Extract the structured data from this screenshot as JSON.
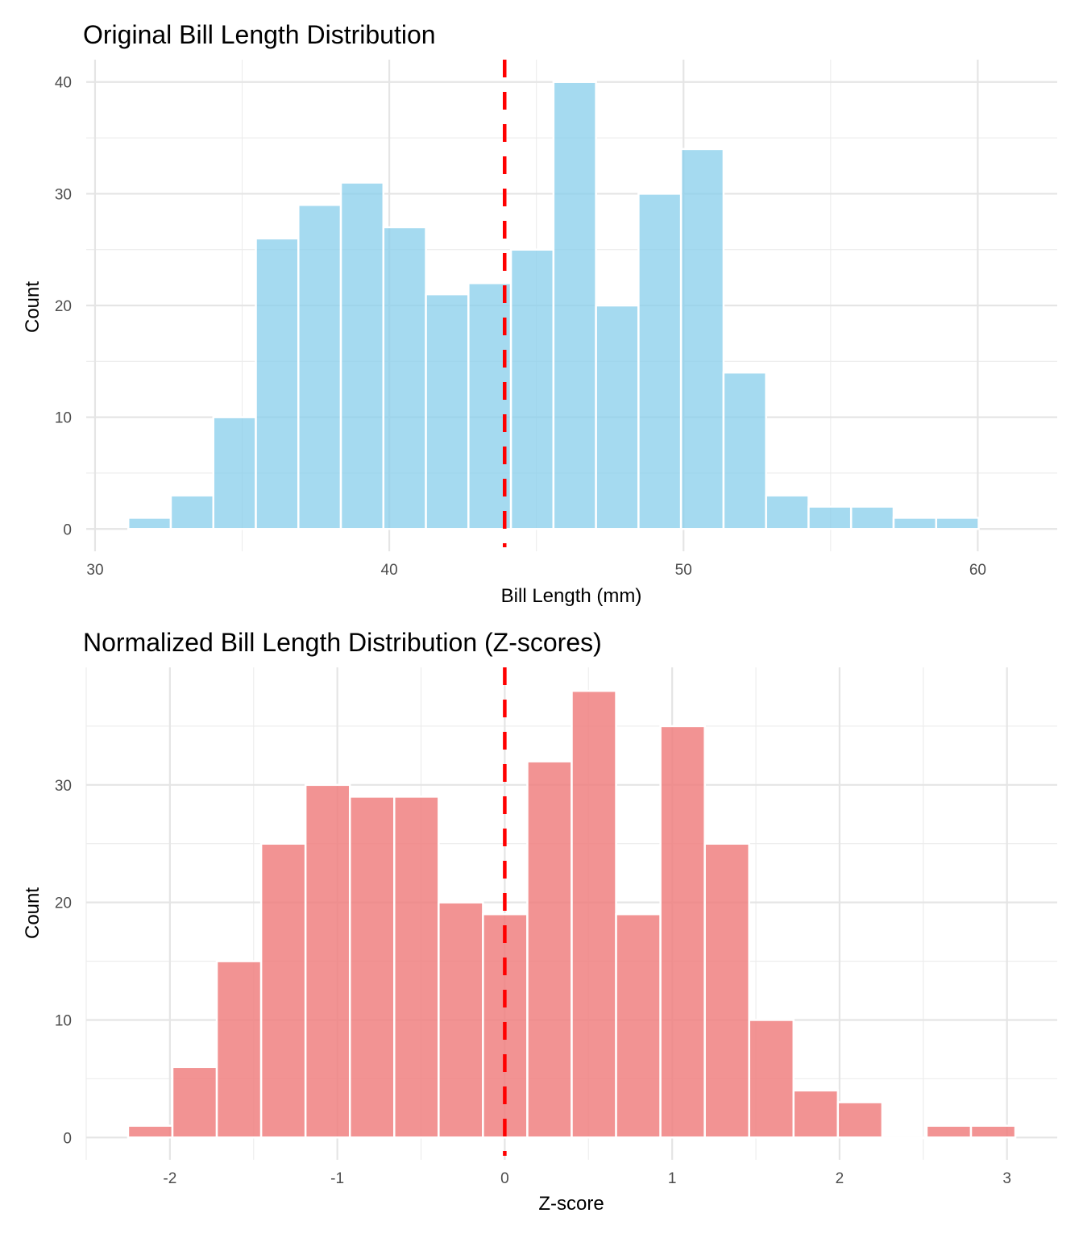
{
  "chart_data": [
    {
      "type": "bar",
      "subtype": "histogram",
      "title": "Original Bill Length Distribution",
      "xlabel": "Bill Length (mm)",
      "ylabel": "Count",
      "bar_color": "#87CEEB",
      "bar_opacity": 0.75,
      "mean_line": {
        "x": 43.92,
        "color": "#FF0000",
        "style": "dashed"
      },
      "bin_start": 31.13,
      "bin_width": 1.445,
      "values": [
        1,
        3,
        10,
        26,
        29,
        31,
        27,
        21,
        22,
        25,
        40,
        20,
        30,
        34,
        14,
        3,
        2,
        2,
        1,
        1
      ],
      "xlim": [
        29.7,
        62.7
      ],
      "ylim": [
        -2.0,
        42.0
      ],
      "x_ticks": [
        30,
        40,
        50,
        60
      ],
      "x_tick_labels": [
        "30",
        "40",
        "50",
        "60"
      ],
      "x_minor_ticks": [
        35,
        45,
        55
      ],
      "y_ticks": [
        0,
        10,
        20,
        30,
        40
      ],
      "y_tick_labels": [
        "0",
        "10",
        "20",
        "30",
        "40"
      ],
      "y_minor_ticks": [
        5,
        15,
        25,
        35
      ],
      "grid": true,
      "legend": "none"
    },
    {
      "type": "bar",
      "subtype": "histogram",
      "title": "Normalized Bill Length Distribution (Z-scores)",
      "xlabel": "Z-score",
      "ylabel": "Count",
      "bar_color": "#F08080",
      "bar_opacity": 0.85,
      "mean_line": {
        "x": 0,
        "color": "#FF0000",
        "style": "dashed"
      },
      "bin_start": -2.25,
      "bin_width": 0.265,
      "values": [
        1,
        6,
        15,
        25,
        30,
        29,
        29,
        20,
        19,
        32,
        38,
        19,
        35,
        25,
        10,
        4,
        3,
        0,
        1,
        1
      ],
      "xlim": [
        -2.5,
        3.3
      ],
      "ylim": [
        -1.9,
        40.0
      ],
      "x_ticks": [
        -2,
        -1,
        0,
        1,
        2,
        3
      ],
      "x_tick_labels": [
        "-2",
        "-1",
        "0",
        "1",
        "2",
        "3"
      ],
      "x_minor_ticks": [
        -2.5,
        -1.5,
        -0.5,
        0.5,
        1.5,
        2.5
      ],
      "y_ticks": [
        0,
        10,
        20,
        30
      ],
      "y_tick_labels": [
        "0",
        "10",
        "20",
        "30"
      ],
      "y_minor_ticks": [
        5,
        15,
        25,
        35
      ],
      "grid": true,
      "legend": "none"
    }
  ]
}
